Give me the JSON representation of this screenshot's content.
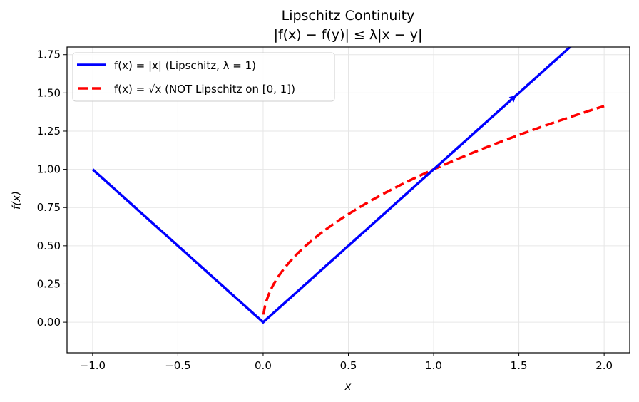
{
  "figure": {
    "title_line1": "Lipschitz Continuity",
    "title_line2": "|f(x) − f(y)| ≤ λ|x − y|",
    "xlabel": "x",
    "ylabel": "f(x)"
  },
  "axes": {
    "x_ticks": [
      {
        "value": -1.0,
        "label": "−1.0"
      },
      {
        "value": -0.5,
        "label": "−0.5"
      },
      {
        "value": 0.0,
        "label": "0.0"
      },
      {
        "value": 0.5,
        "label": "0.5"
      },
      {
        "value": 1.0,
        "label": "1.0"
      },
      {
        "value": 1.5,
        "label": "1.5"
      },
      {
        "value": 2.0,
        "label": "2.0"
      }
    ],
    "y_ticks": [
      {
        "value": 0.0,
        "label": "0.00"
      },
      {
        "value": 0.25,
        "label": "0.25"
      },
      {
        "value": 0.5,
        "label": "0.50"
      },
      {
        "value": 0.75,
        "label": "0.75"
      },
      {
        "value": 1.0,
        "label": "1.00"
      },
      {
        "value": 1.25,
        "label": "1.25"
      },
      {
        "value": 1.5,
        "label": "1.50"
      },
      {
        "value": 1.75,
        "label": "1.75"
      }
    ]
  },
  "legend": {
    "items": [
      {
        "label": "f(x) = |x| (Lipschitz, λ = 1)",
        "color": "#0000ff",
        "style": "solid"
      },
      {
        "label": "f(x) = √x (NOT Lipschitz on [0, 1])",
        "color": "#ff0000",
        "style": "dashed"
      }
    ]
  },
  "chart_data": {
    "type": "line",
    "title": "Lipschitz Continuity\n|f(x) − f(y)| ≤ λ|x − y|",
    "xlabel": "x",
    "ylabel": "f(x)",
    "xlim": [
      -1.15,
      2.15
    ],
    "ylim": [
      -0.2,
      1.8
    ],
    "grid": true,
    "legend_position": "upper left",
    "series": [
      {
        "name": "f(x) = |x| (Lipschitz, λ = 1)",
        "color": "#0000ff",
        "linestyle": "solid",
        "x": [
          -1.0,
          -0.5,
          0.0,
          0.5,
          1.0,
          1.5,
          1.8,
          2.0
        ],
        "y": [
          1.0,
          0.5,
          0.0,
          0.5,
          1.0,
          1.5,
          1.8,
          2.0
        ],
        "annotation": "arrowhead near (1.47, 1.47)"
      },
      {
        "name": "f(x) = √x (NOT Lipschitz on [0, 1])",
        "color": "#ff0000",
        "linestyle": "dashed",
        "x": [
          0.0,
          0.01,
          0.05,
          0.1,
          0.25,
          0.5,
          0.75,
          1.0,
          1.25,
          1.5,
          1.75,
          2.0
        ],
        "y": [
          0.0,
          0.1,
          0.224,
          0.316,
          0.5,
          0.707,
          0.866,
          1.0,
          1.118,
          1.225,
          1.323,
          1.414
        ]
      }
    ]
  }
}
